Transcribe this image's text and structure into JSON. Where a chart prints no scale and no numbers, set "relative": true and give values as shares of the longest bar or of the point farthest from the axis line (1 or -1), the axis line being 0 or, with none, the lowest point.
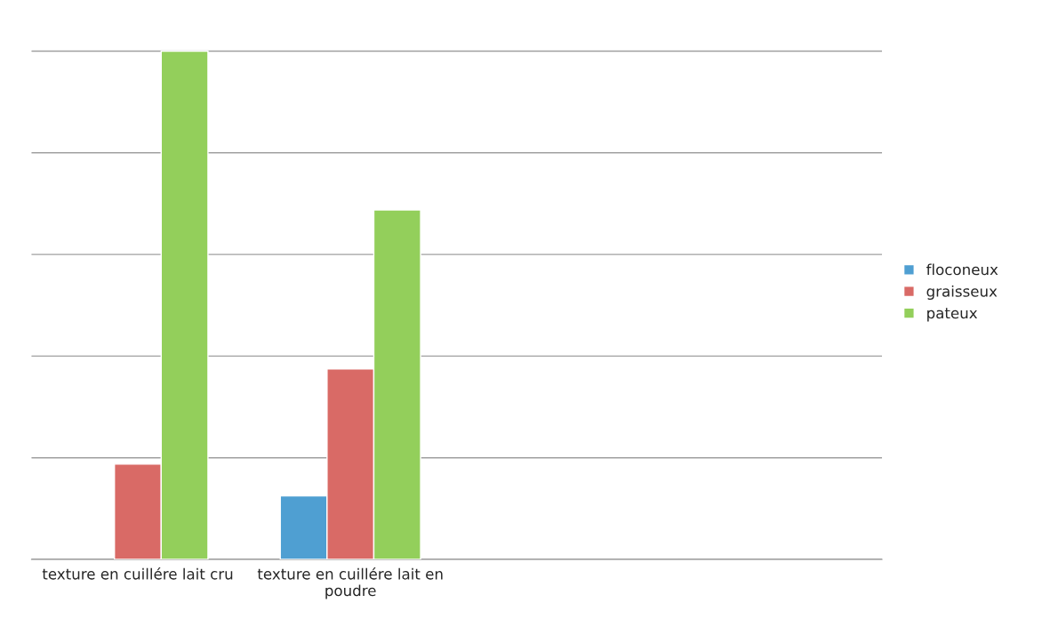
{
  "chart_data": {
    "type": "bar",
    "relative": true,
    "categories": [
      "texture en cuillére lait cru",
      "texture en cuillére lait en poudre",
      null,
      null
    ],
    "series": [
      {
        "name": "floconeux",
        "color": "#4f9fd2",
        "values": [
          null,
          0.125,
          null,
          null
        ]
      },
      {
        "name": "graisseux",
        "color": "#d96a66",
        "values": [
          0.1875,
          0.375,
          null,
          null
        ]
      },
      {
        "name": "pateux",
        "color": "#93cf5b",
        "values": [
          1,
          0.6875,
          null,
          null
        ]
      }
    ],
    "grid": "y",
    "legend": "right"
  }
}
